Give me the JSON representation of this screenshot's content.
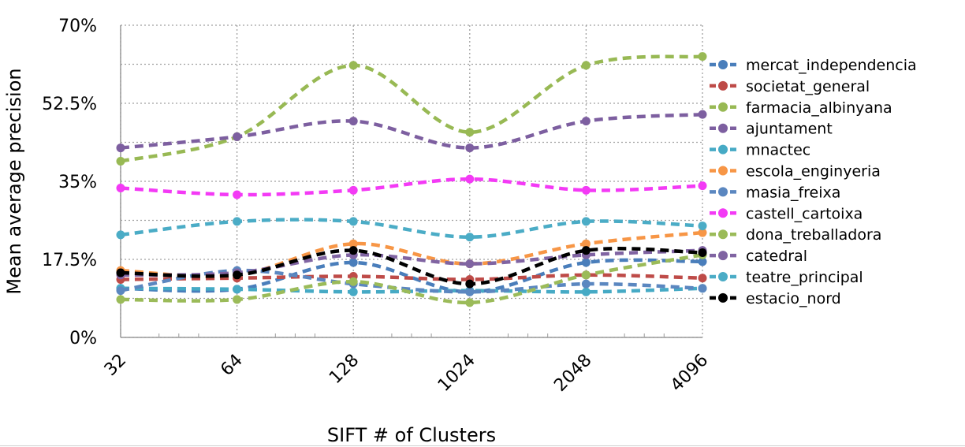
{
  "chart_data": {
    "type": "line",
    "title": "",
    "xlabel": "SIFT # of Clusters",
    "ylabel": "Mean average precision",
    "categories": [
      "32",
      "64",
      "128",
      "1024",
      "2048",
      "4096"
    ],
    "ylim": [
      0,
      70
    ],
    "yticks": [
      0,
      17.5,
      35,
      52.5,
      70
    ],
    "ytick_labels": [
      "0%",
      "17.5%",
      "35%",
      "52.5%",
      "70%"
    ],
    "grid": true,
    "legend_position": "right",
    "line_style": "dashed",
    "series": [
      {
        "name": "mercat_independencia",
        "color": "#4a7ebb",
        "values": [
          11.0,
          10.8,
          16.8,
          10.2,
          16.8,
          17.0
        ]
      },
      {
        "name": "societat_general",
        "color": "#be4b48",
        "values": [
          13.0,
          13.3,
          13.7,
          13.0,
          14.0,
          13.3
        ]
      },
      {
        "name": "farmacia_albinyana",
        "color": "#98b954",
        "values": [
          39.5,
          45.0,
          61.0,
          46.0,
          61.0,
          63.0
        ]
      },
      {
        "name": "ajuntament",
        "color": "#7d5fa0",
        "values": [
          42.5,
          45.0,
          48.5,
          42.5,
          48.5,
          50.0
        ]
      },
      {
        "name": "mnactec",
        "color": "#46aac5",
        "values": [
          11.0,
          10.8,
          10.2,
          10.5,
          10.2,
          11.0
        ]
      },
      {
        "name": "escola_enginyeria",
        "color": "#f79646",
        "values": [
          15.0,
          14.0,
          21.0,
          16.5,
          21.0,
          23.5
        ]
      },
      {
        "name": "masia_freixa",
        "color": "#5b87c0",
        "values": [
          10.5,
          15.0,
          12.0,
          10.2,
          12.0,
          11.0
        ]
      },
      {
        "name": "castell_cartoixa",
        "color": "#f33af5",
        "values": [
          33.5,
          32.0,
          33.0,
          35.5,
          33.0,
          34.0
        ]
      },
      {
        "name": "dona_treballadora",
        "color": "#9bbb59",
        "values": [
          8.5,
          8.5,
          12.5,
          7.8,
          14.0,
          18.5
        ]
      },
      {
        "name": "catedral",
        "color": "#8064a2",
        "values": [
          14.0,
          14.5,
          18.5,
          16.5,
          18.5,
          19.5
        ]
      },
      {
        "name": "teatre_principal",
        "color": "#4bacc6",
        "values": [
          23.0,
          26.0,
          26.0,
          22.5,
          26.0,
          25.0
        ]
      },
      {
        "name": "estacio_nord",
        "color": "#000000",
        "values": [
          14.5,
          14.0,
          19.5,
          12.0,
          19.5,
          19.0
        ]
      }
    ]
  }
}
